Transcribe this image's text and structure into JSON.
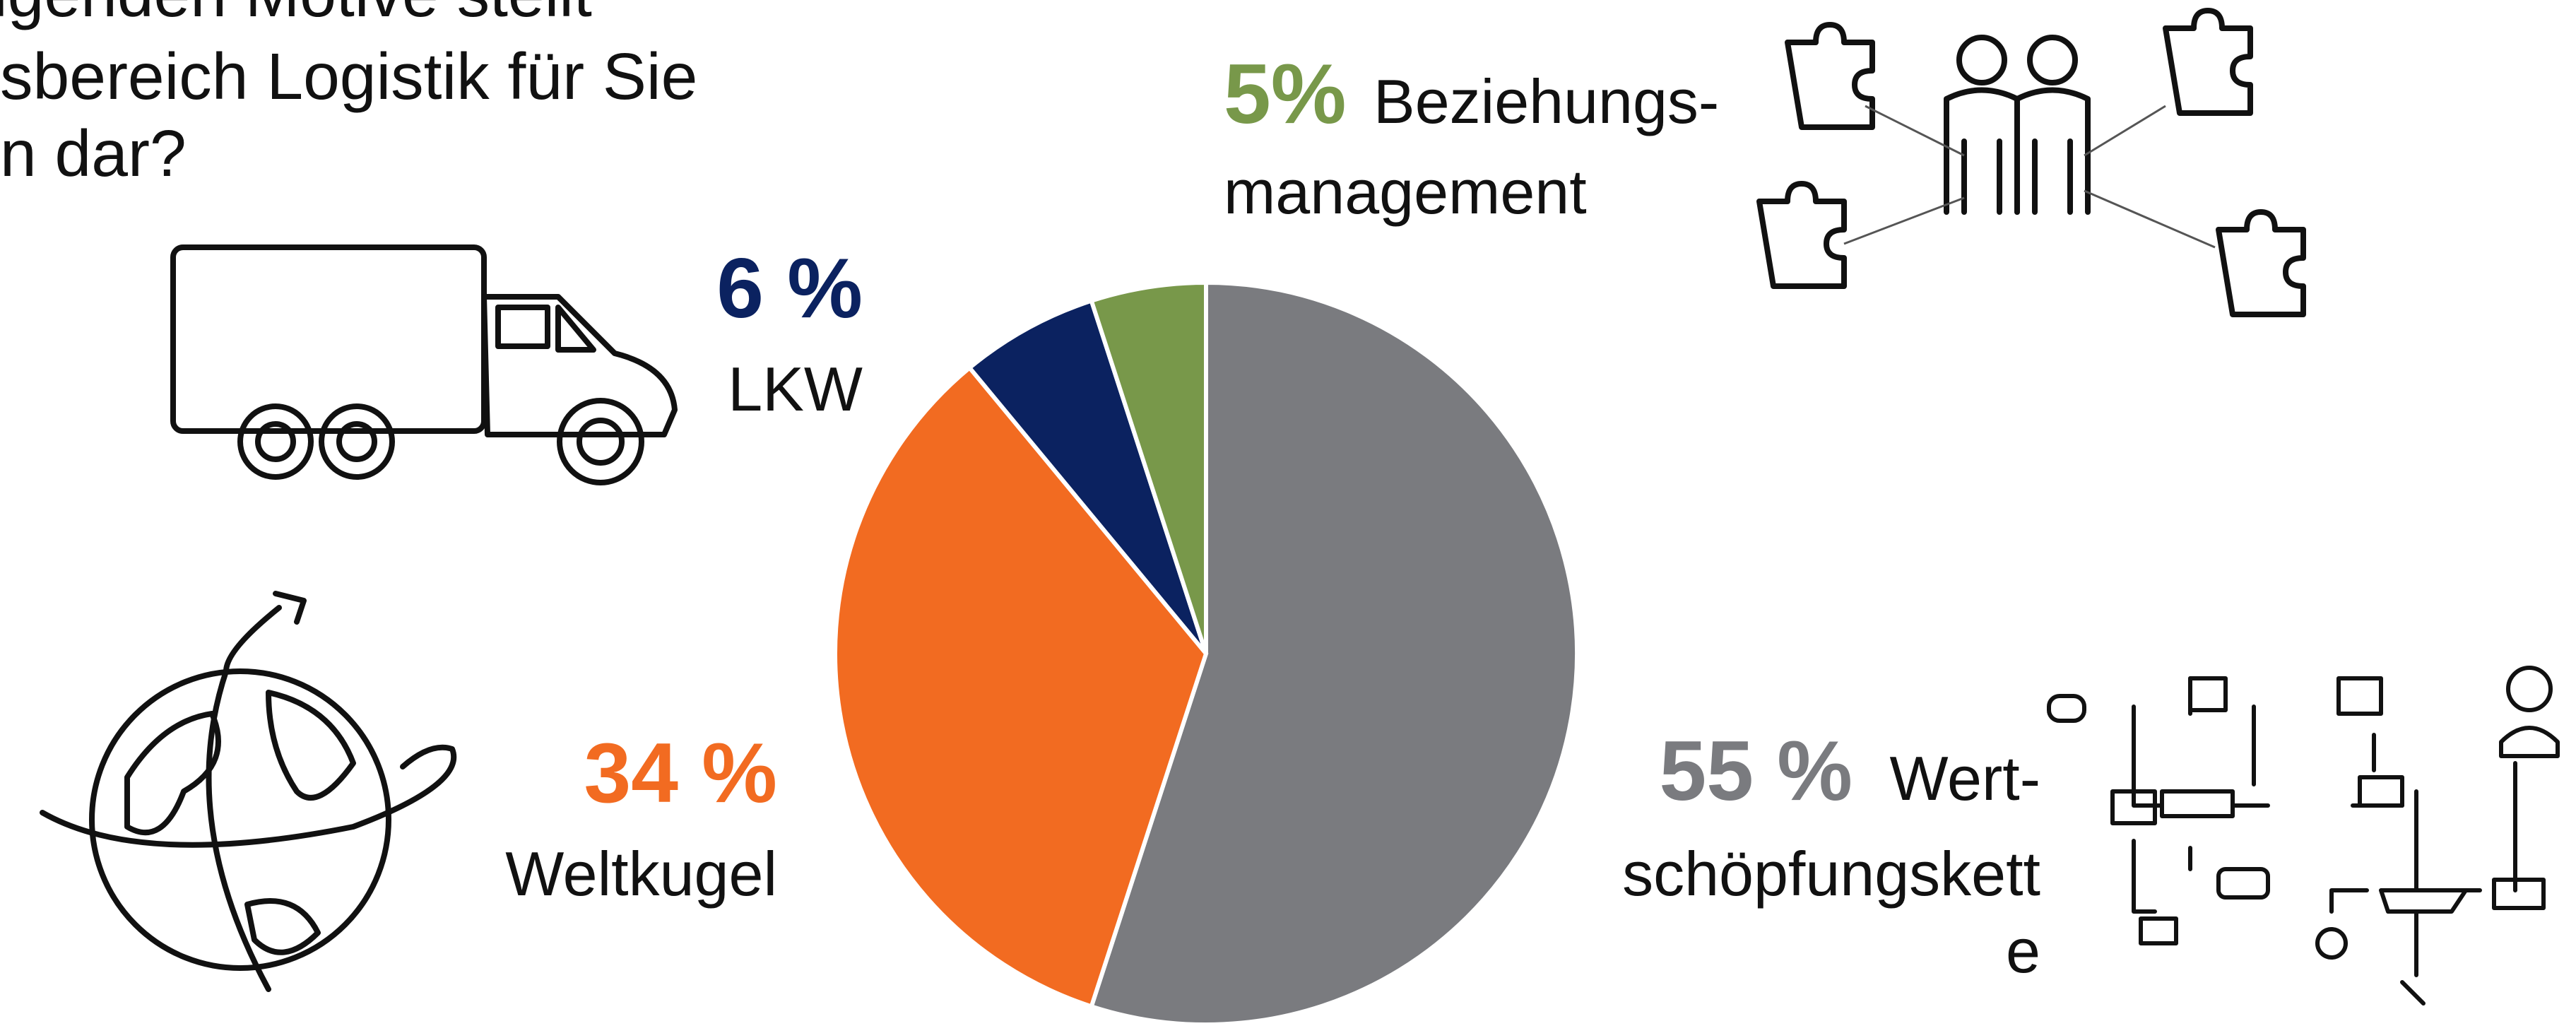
{
  "chart_data": {
    "type": "pie",
    "title_lines": [
      "lgenden Motive stellt",
      "sbereich Logistik für Sie",
      "n dar?"
    ],
    "categories": [
      [
        "Wert-",
        "schöpfungskett",
        "e"
      ],
      [
        "Weltkugel"
      ],
      [
        "LKW"
      ],
      [
        "Beziehungs-",
        "management"
      ]
    ],
    "values": [
      55,
      34,
      6,
      5
    ],
    "value_labels": [
      "55 %",
      "34 %",
      "6 %",
      "5%"
    ],
    "colors": [
      "#7a7b7f",
      "#f26b21",
      "#0b2260",
      "#78984a"
    ]
  }
}
